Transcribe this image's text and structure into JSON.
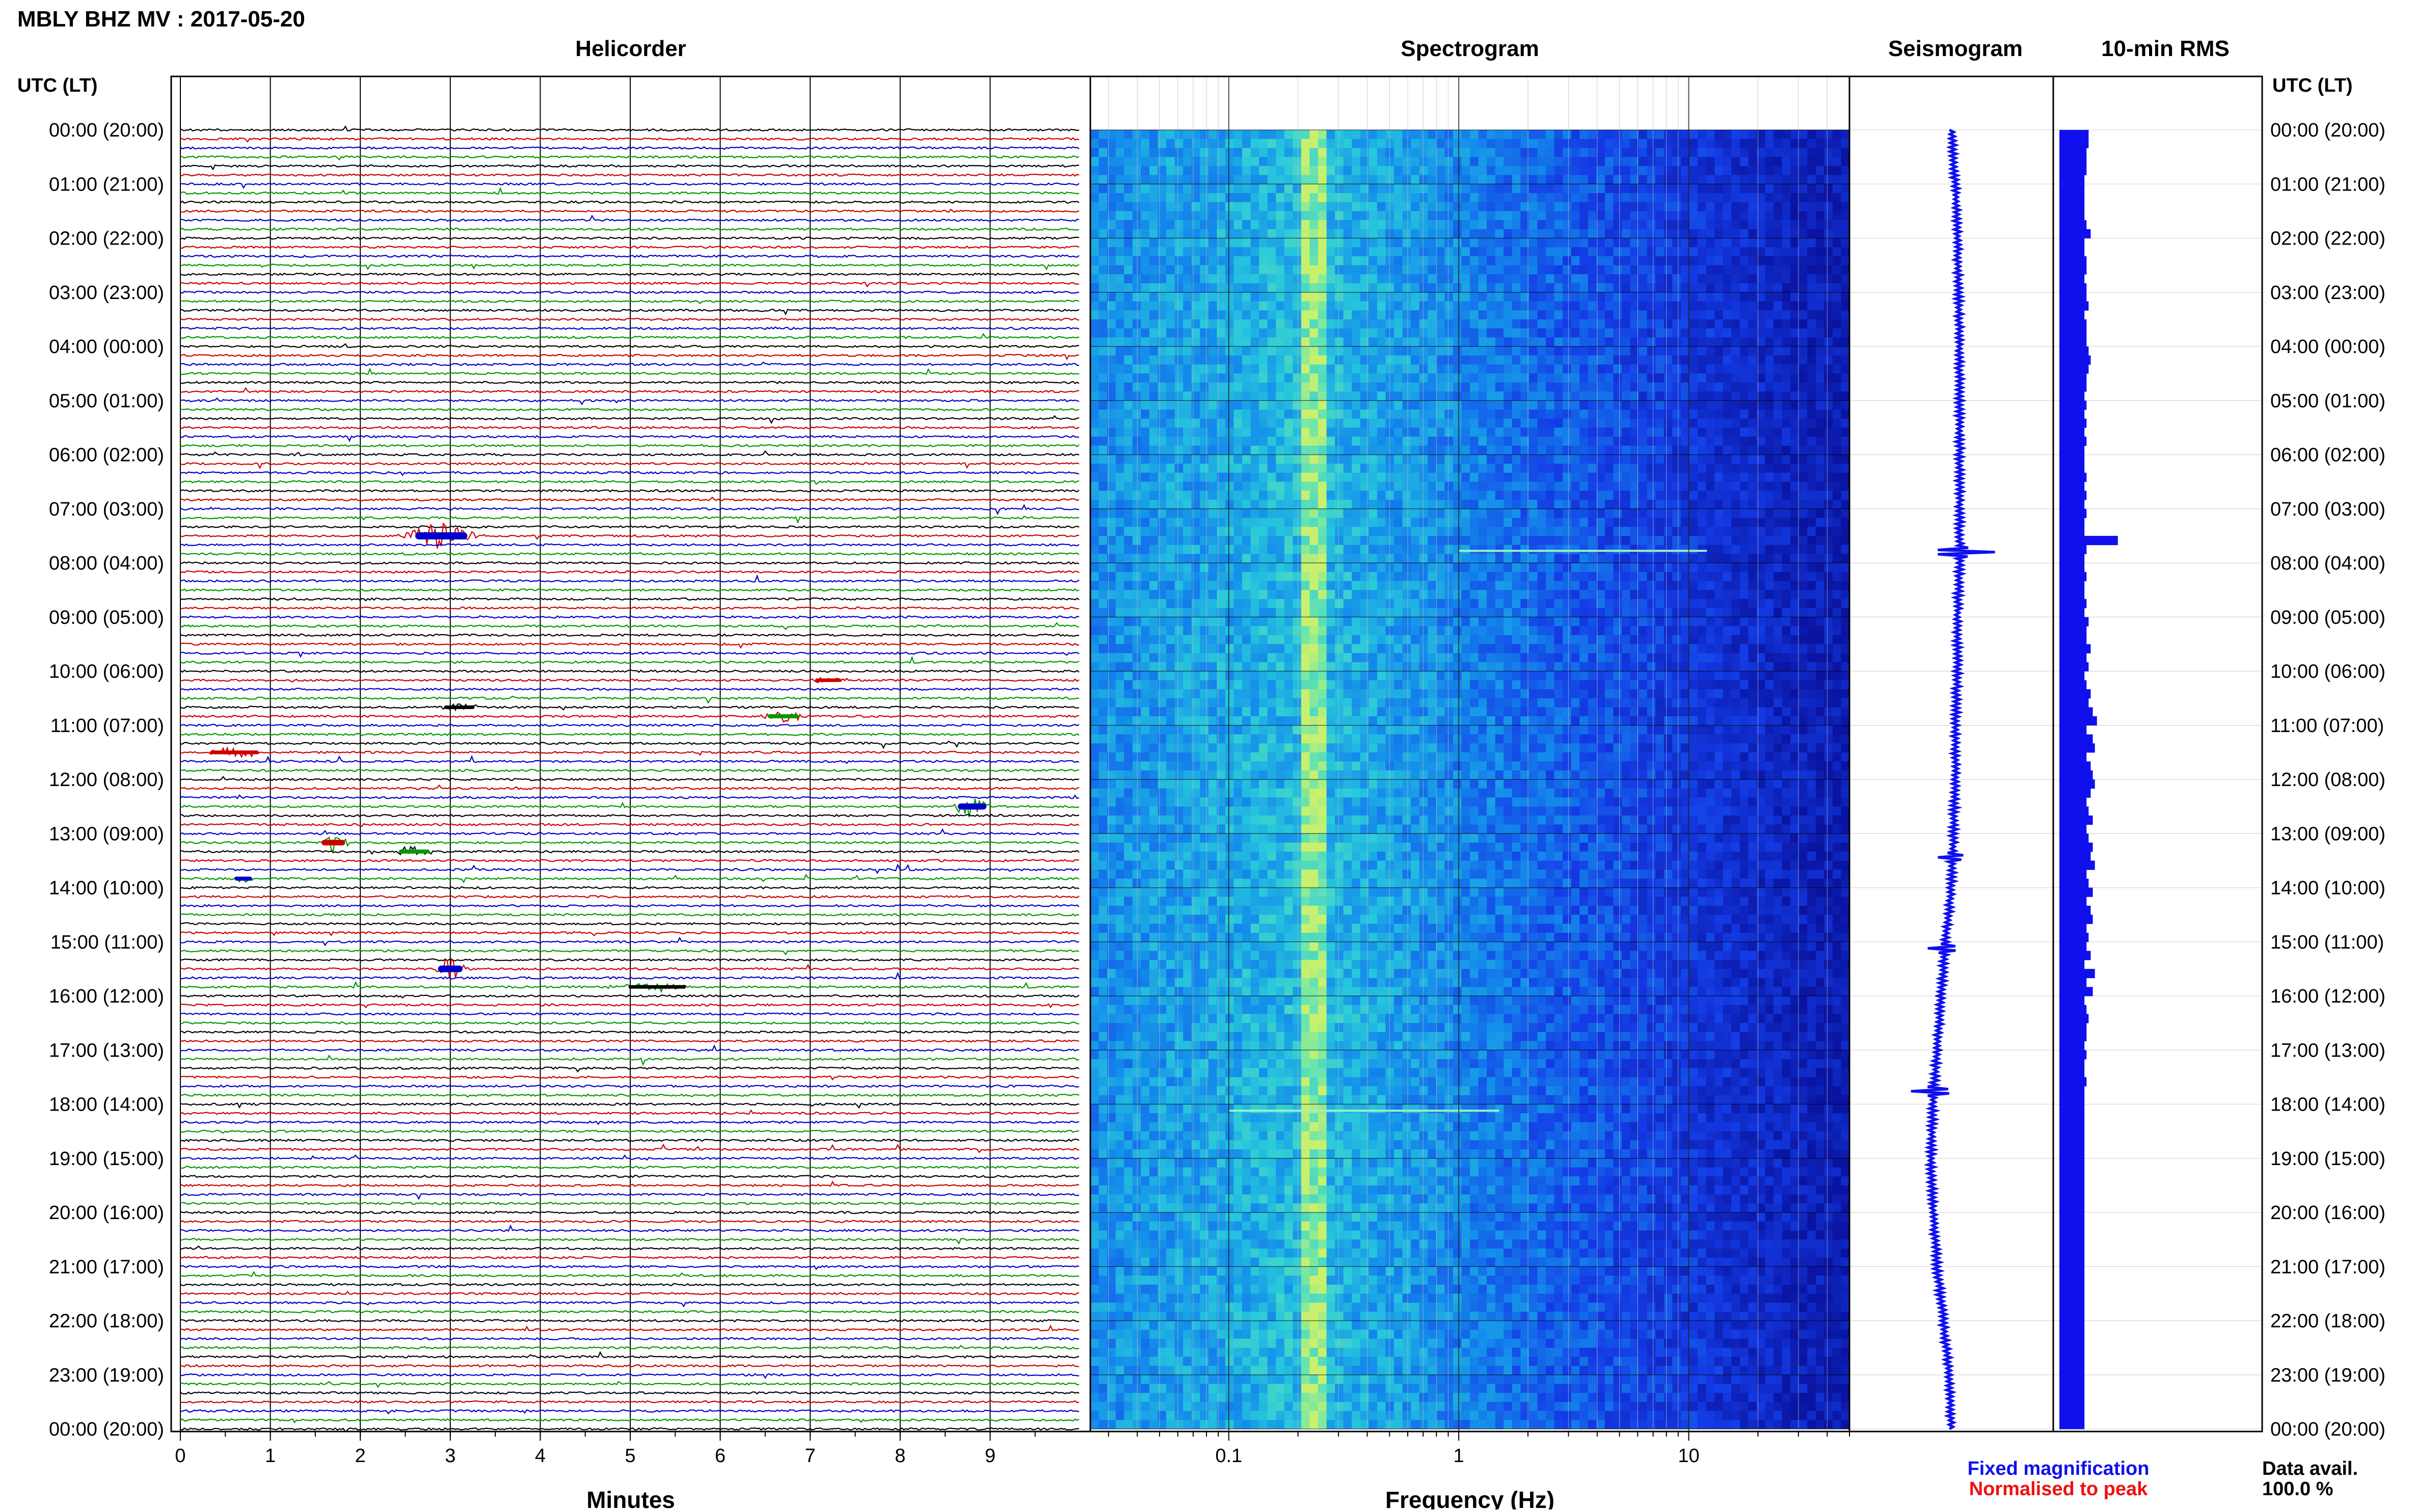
{
  "header": {
    "title": "MBLY BHZ MV : 2017-05-20",
    "utc_label_left": "UTC (LT)",
    "utc_label_right": "UTC (LT)"
  },
  "panels": {
    "helicorder": "Helicorder",
    "spectrogram": "Spectrogram",
    "seismogram": "Seismogram",
    "rms": "10-min RMS"
  },
  "legend": {
    "fixed": "Fixed magnification",
    "normalised": "Normalised to peak",
    "avail_label": "Data avail.",
    "avail_value": "100.0 %"
  },
  "colors": {
    "trace_cycle": [
      "#000000",
      "#cc0000",
      "#0000cc",
      "#009900"
    ],
    "fixed": "#1010ee",
    "normalised": "#ee1010",
    "rms_bar": "#1010ee",
    "seismo": "#1010ee"
  },
  "chart_data": [
    {
      "type": "line",
      "name": "helicorder",
      "xlabel": "Minutes",
      "x_ticks": [
        "0",
        "1",
        "2",
        "3",
        "4",
        "5",
        "6",
        "7",
        "8",
        "9"
      ],
      "xlim": [
        0,
        10
      ],
      "rows_per_hour": 6,
      "hours": 24,
      "time_labels": [
        "00:00 (20:00)",
        "01:00 (21:00)",
        "02:00 (22:00)",
        "03:00 (23:00)",
        "04:00 (00:00)",
        "05:00 (01:00)",
        "06:00 (02:00)",
        "07:00 (03:00)",
        "08:00 (04:00)",
        "09:00 (05:00)",
        "10:00 (06:00)",
        "11:00 (07:00)",
        "12:00 (08:00)",
        "13:00 (09:00)",
        "14:00 (10:00)",
        "15:00 (11:00)",
        "16:00 (12:00)",
        "17:00 (13:00)",
        "18:00 (14:00)",
        "19:00 (15:00)",
        "20:00 (16:00)",
        "21:00 (17:00)",
        "22:00 (18:00)",
        "23:00 (19:00)",
        "00:00 (20:00)"
      ],
      "events": [
        {
          "row": 45,
          "minute": 2.9,
          "width_min": 0.5,
          "amp": 1.0,
          "color": "#0000cc"
        },
        {
          "row": 75,
          "minute": 8.8,
          "width_min": 0.25,
          "amp": 0.8,
          "color": "#0000cc"
        },
        {
          "row": 79,
          "minute": 1.7,
          "width_min": 0.2,
          "amp": 0.7,
          "color": "#cc0000"
        },
        {
          "row": 80,
          "minute": 2.6,
          "width_min": 0.3,
          "amp": 0.4,
          "color": "#009900"
        },
        {
          "row": 93,
          "minute": 3.0,
          "width_min": 0.2,
          "amp": 0.9,
          "color": "#0000cc"
        },
        {
          "row": 95,
          "minute": 5.3,
          "width_min": 0.6,
          "amp": 0.3,
          "color": "#000000"
        },
        {
          "row": 69,
          "minute": 0.6,
          "width_min": 0.5,
          "amp": 0.35,
          "color": "#cc0000"
        },
        {
          "row": 65,
          "minute": 6.7,
          "width_min": 0.3,
          "amp": 0.4,
          "color": "#009900"
        },
        {
          "row": 64,
          "minute": 3.1,
          "width_min": 0.3,
          "amp": 0.3,
          "color": "#000000"
        },
        {
          "row": 61,
          "minute": 7.2,
          "width_min": 0.25,
          "amp": 0.3,
          "color": "#cc0000"
        },
        {
          "row": 83,
          "minute": 0.7,
          "width_min": 0.15,
          "amp": 0.4,
          "color": "#0000cc"
        }
      ]
    },
    {
      "type": "heatmap",
      "name": "spectrogram",
      "xlabel": "Frequency (Hz)",
      "x_scale": "log",
      "xlim": [
        0.025,
        50
      ],
      "x_tick_values": [
        0.1,
        1,
        10
      ],
      "x_tick_labels": [
        "0.1",
        "1",
        "10"
      ],
      "peak_band_hz": [
        0.2,
        0.26
      ],
      "event_lines": [
        {
          "row_frac": 0.324,
          "f_from": 1,
          "f_to": 12
        },
        {
          "row_frac": 0.755,
          "f_from": 0.1,
          "f_to": 1.5
        }
      ]
    },
    {
      "type": "line",
      "name": "seismogram",
      "drift": [
        0.5,
        0.52,
        0.53,
        0.535,
        0.54,
        0.54,
        0.54,
        0.54,
        0.54,
        0.53,
        0.53,
        0.52,
        0.52,
        0.51,
        0.5,
        0.47,
        0.45,
        0.43,
        0.41,
        0.4,
        0.41,
        0.43,
        0.46,
        0.49,
        0.5
      ],
      "spikes": [
        {
          "row_frac": 0.325,
          "amp": 0.16
        },
        {
          "row_frac": 0.74,
          "amp": 0.1
        },
        {
          "row_frac": 0.56,
          "amp": 0.06
        },
        {
          "row_frac": 0.63,
          "amp": 0.07
        }
      ]
    },
    {
      "type": "bar",
      "name": "rms",
      "orientation": "horizontal",
      "values": [
        0.14,
        0.14,
        0.13,
        0.13,
        0.13,
        0.12,
        0.12,
        0.12,
        0.12,
        0.12,
        0.13,
        0.15,
        0.12,
        0.12,
        0.13,
        0.13,
        0.12,
        0.13,
        0.13,
        0.14,
        0.12,
        0.13,
        0.13,
        0.13,
        0.14,
        0.15,
        0.14,
        0.13,
        0.13,
        0.12,
        0.13,
        0.12,
        0.13,
        0.12,
        0.13,
        0.12,
        0.12,
        0.12,
        0.13,
        0.12,
        0.13,
        0.12,
        0.13,
        0.12,
        0.12,
        0.28,
        0.13,
        0.12,
        0.12,
        0.13,
        0.12,
        0.12,
        0.13,
        0.12,
        0.14,
        0.13,
        0.13,
        0.15,
        0.13,
        0.14,
        0.12,
        0.13,
        0.15,
        0.14,
        0.16,
        0.18,
        0.13,
        0.16,
        0.17,
        0.13,
        0.15,
        0.16,
        0.17,
        0.15,
        0.13,
        0.14,
        0.16,
        0.13,
        0.14,
        0.16,
        0.15,
        0.17,
        0.13,
        0.14,
        0.16,
        0.13,
        0.15,
        0.16,
        0.13,
        0.14,
        0.13,
        0.15,
        0.12,
        0.17,
        0.13,
        0.16,
        0.12,
        0.13,
        0.14,
        0.13,
        0.13,
        0.12,
        0.13,
        0.12,
        0.12,
        0.13,
        0.12,
        0.12,
        0.12,
        0.12,
        0.12,
        0.12,
        0.12,
        0.12,
        0.12,
        0.12,
        0.12,
        0.12,
        0.12,
        0.12,
        0.12,
        0.12,
        0.12,
        0.12,
        0.12,
        0.12,
        0.12,
        0.12,
        0.12,
        0.12,
        0.12,
        0.12,
        0.12,
        0.12,
        0.12,
        0.12,
        0.12,
        0.12,
        0.12,
        0.12,
        0.12,
        0.12,
        0.12,
        0.12
      ]
    }
  ]
}
